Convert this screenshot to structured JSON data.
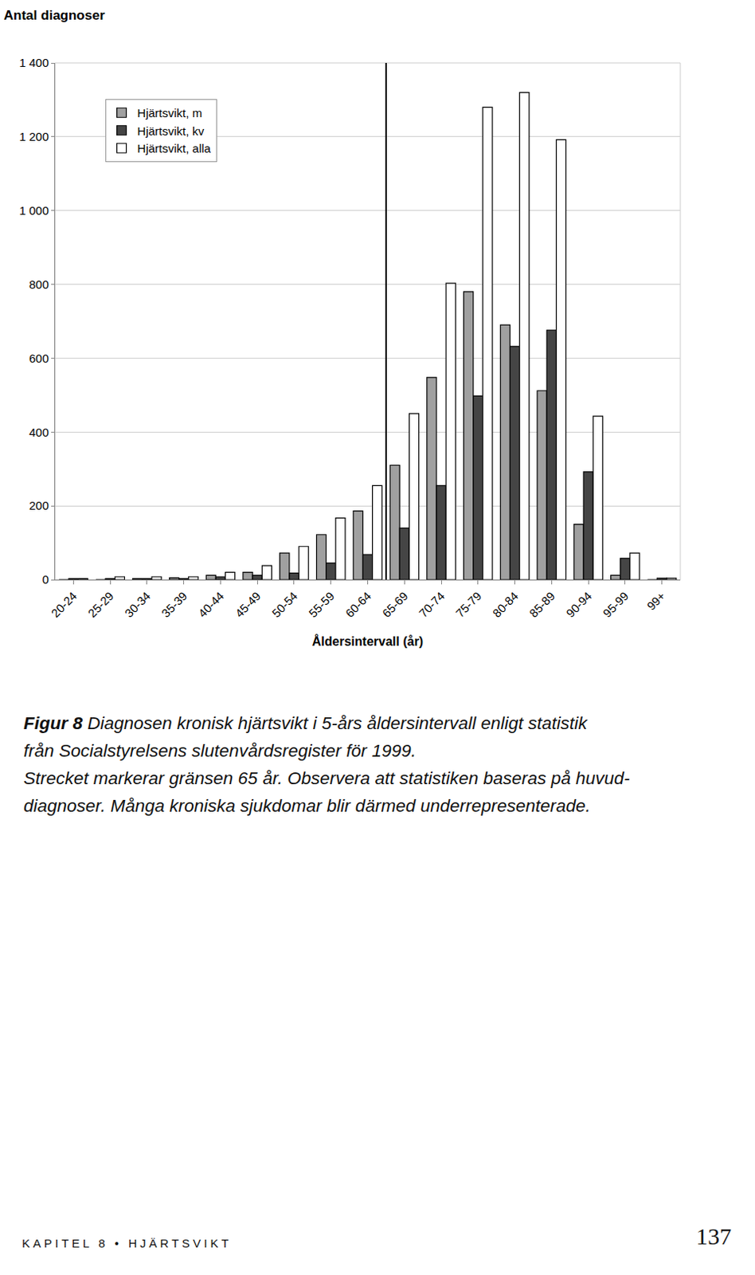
{
  "chart_data": {
    "type": "bar",
    "title": "Antal diagnoser",
    "x_label": "Åldersintervall (år)",
    "categories": [
      "20-24",
      "25-29",
      "30-34",
      "35-39",
      "40-44",
      "45-49",
      "50-54",
      "55-59",
      "60-64",
      "65-69",
      "70-74",
      "75-79",
      "80-84",
      "85-89",
      "90-94",
      "95-99",
      "99+"
    ],
    "series": [
      {
        "name": "Hjärtsvikt, m",
        "color": "#a0a0a0",
        "values": [
          0,
          0,
          3,
          5,
          12,
          20,
          72,
          122,
          186,
          310,
          548,
          780,
          690,
          512,
          150,
          12,
          0
        ]
      },
      {
        "name": "Hjärtsvikt, kv",
        "color": "#454545",
        "values": [
          3,
          3,
          3,
          3,
          8,
          12,
          18,
          45,
          68,
          140,
          255,
          498,
          632,
          676,
          292,
          58,
          4
        ]
      },
      {
        "name": "Hjärtsvikt, alla",
        "color": "#ffffff",
        "values": [
          3,
          8,
          8,
          8,
          20,
          38,
          90,
          167,
          255,
          450,
          803,
          1280,
          1320,
          1192,
          443,
          72,
          4
        ]
      }
    ],
    "ylim": [
      0,
      1400
    ],
    "yticks": [
      0,
      200,
      400,
      600,
      800,
      {
        "value": 1000,
        "label": "1 000"
      },
      {
        "value": 1200,
        "label": "1 200"
      },
      {
        "value": 1400,
        "label": "1 400"
      }
    ],
    "grid": true,
    "legend": "top-left",
    "vline_before": "65-69",
    "caption": {
      "label": "Figur 8",
      "lines": [
        "Diagnosen kronisk hjärtsvikt i 5-års åldersintervall enligt statistik",
        "från Socialstyrelsens slutenvårdsregister för 1999.",
        "Strecket markerar gränsen 65 år. Observera att statistiken baseras på huvud-",
        "diagnoser. Många kroniska sjukdomar blir därmed underrepresenterade."
      ]
    },
    "footer": "KAPITEL 8 • HJÄRTSVIKT",
    "page_number": "137"
  }
}
